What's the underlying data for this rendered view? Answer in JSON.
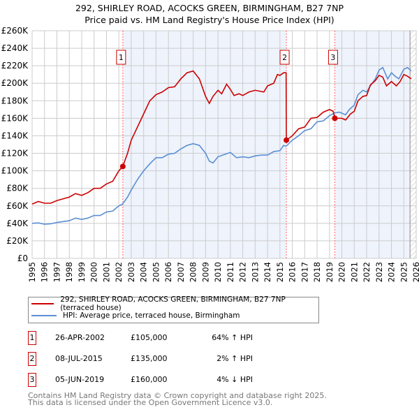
{
  "chart_data": {
    "type": "line",
    "title": "292, SHIRLEY ROAD, ACOCKS GREEN, BIRMINGHAM, B27 7NP",
    "subtitle": "Price paid vs. HM Land Registry's House Price Index (HPI)",
    "xlim": [
      1995,
      2026
    ],
    "ylim": [
      0,
      260000
    ],
    "xticks": [
      "1995",
      "1996",
      "1997",
      "1998",
      "1999",
      "2000",
      "2001",
      "2002",
      "2003",
      "2004",
      "2005",
      "2006",
      "2007",
      "2008",
      "2009",
      "2010",
      "2011",
      "2012",
      "2013",
      "2014",
      "2015",
      "2016",
      "2017",
      "2018",
      "2019",
      "2020",
      "2021",
      "2022",
      "2023",
      "2024",
      "2025",
      "2026"
    ],
    "yticks": [
      "£0",
      "£20K",
      "£40K",
      "£60K",
      "£80K",
      "£100K",
      "£120K",
      "£140K",
      "£160K",
      "£180K",
      "£200K",
      "£220K",
      "£240K",
      "£260K"
    ],
    "grid": true,
    "forecast_from": 2025.5,
    "series": [
      {
        "name": "292, SHIRLEY ROAD, ACOCKS GREEN, BIRMINGHAM, B27 7NP (terraced house)",
        "color": "#cc0000",
        "x": [
          1995,
          1995.5,
          1996,
          1996.5,
          1997,
          1998,
          1998.5,
          1999,
          1999.5,
          2000,
          2000.5,
          2001,
          2001.5,
          2002,
          2002.32,
          2002.7,
          2003,
          2003.5,
          2004,
          2004.5,
          2005,
          2005.5,
          2006,
          2006.5,
          2007,
          2007.5,
          2008,
          2008.5,
          2009,
          2009.3,
          2009.6,
          2010,
          2010.3,
          2010.7,
          2011,
          2011.3,
          2011.7,
          2012,
          2012.5,
          2013,
          2013.7,
          2014,
          2014.5,
          2014.8,
          2015,
          2015.3,
          2015.5,
          2015.52,
          2016,
          2016.5,
          2017,
          2017.5,
          2018,
          2018.5,
          2019,
          2019.3,
          2019.43,
          2020,
          2020.3,
          2020.7,
          2021,
          2021.3,
          2021.7,
          2022,
          2022.3,
          2022.7,
          2023,
          2023.3,
          2023.6,
          2024,
          2024.4,
          2024.7,
          2025,
          2025.3,
          2025.6
        ],
        "y": [
          62,
          65,
          63,
          63,
          66,
          70,
          74,
          72,
          75,
          80,
          80,
          85,
          88,
          100,
          105,
          120,
          135,
          150,
          165,
          180,
          187,
          190,
          195,
          196,
          205,
          212,
          214,
          205,
          185,
          177,
          185,
          192,
          188,
          199,
          193,
          186,
          188,
          186,
          190,
          192,
          190,
          197,
          200,
          210,
          209,
          212,
          212,
          135,
          140,
          148,
          150,
          160,
          161,
          167,
          170,
          168,
          160,
          160,
          158,
          165,
          168,
          180,
          185,
          186,
          198,
          203,
          209,
          207,
          197,
          202,
          197,
          202,
          210,
          208,
          205
        ]
      },
      {
        "name": "HPI: Average price, terraced house, Birmingham",
        "color": "#5b8fd4",
        "x": [
          1995,
          1995.5,
          1996,
          1996.5,
          1997,
          1998,
          1998.5,
          1999,
          1999.5,
          2000,
          2000.5,
          2001,
          2001.5,
          2002,
          2002.3,
          2002.7,
          2003,
          2003.5,
          2004,
          2004.5,
          2005,
          2005.5,
          2006,
          2006.5,
          2007,
          2007.5,
          2008,
          2008.5,
          2009,
          2009.3,
          2009.6,
          2010,
          2010.4,
          2011,
          2011.5,
          2012,
          2012.5,
          2013,
          2013.5,
          2014,
          2014.5,
          2015,
          2015.3,
          2015.5,
          2016,
          2016.5,
          2017,
          2017.5,
          2018,
          2018.5,
          2019,
          2019.4,
          2019.8,
          2020.3,
          2020.6,
          2021,
          2021.3,
          2021.7,
          2022,
          2022.3,
          2022.7,
          2023,
          2023.3,
          2023.7,
          2024,
          2024.3,
          2024.6,
          2025,
          2025.3,
          2025.6
        ],
        "y": [
          40,
          40.5,
          39,
          39.5,
          41,
          43,
          46,
          44.5,
          46,
          49,
          49,
          53,
          54,
          60,
          62,
          70,
          78,
          90,
          100,
          108,
          115,
          115,
          119,
          120,
          125,
          129,
          131,
          129,
          120,
          111,
          109,
          116,
          118,
          121,
          115,
          116,
          115,
          117,
          118,
          118,
          122,
          123,
          129,
          128,
          135,
          140,
          146,
          148,
          156,
          157,
          163,
          166,
          167,
          164,
          170,
          175,
          187,
          192,
          190,
          197,
          205,
          215,
          218,
          205,
          212,
          208,
          205,
          216,
          218,
          214
        ]
      }
    ],
    "sales": [
      {
        "label": "1",
        "x": 2002.32,
        "y": 105,
        "date": "26-APR-2002",
        "price": "£105,000",
        "hpi": "64% ↑ HPI"
      },
      {
        "label": "2",
        "x": 2015.52,
        "y": 135,
        "date": "08-JUL-2015",
        "price": "£135,000",
        "hpi": "2% ↑ HPI"
      },
      {
        "label": "3",
        "x": 2019.43,
        "y": 160,
        "date": "05-JUN-2019",
        "price": "£160,000",
        "hpi": "4% ↓ HPI"
      }
    ],
    "y_units": "£K"
  },
  "legend": {
    "red": "292, SHIRLEY ROAD, ACOCKS GREEN, BIRMINGHAM, B27 7NP (terraced house)",
    "blue": "HPI: Average price, terraced house, Birmingham"
  },
  "footer": {
    "line1": "Contains HM Land Registry data © Crown copyright and database right 2025.",
    "line2": "This data is licensed under the Open Government Licence v3.0."
  }
}
